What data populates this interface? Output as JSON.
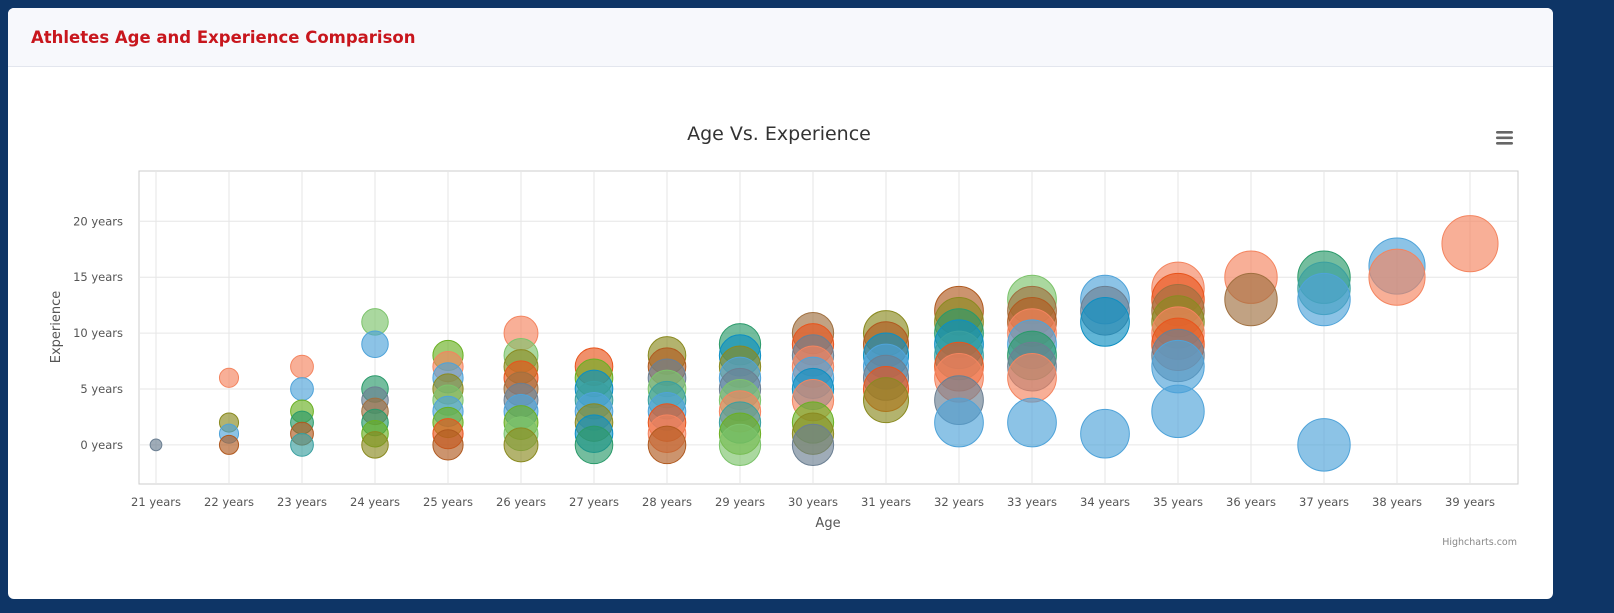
{
  "page": {
    "title": "Athletes Age and Experience Comparison"
  },
  "chart_data": {
    "type": "bubble",
    "title": "Age Vs. Experience",
    "xlabel": "Age",
    "ylabel": "Experience",
    "categories": [
      "21 years",
      "22 years",
      "23 years",
      "24 years",
      "25 years",
      "26 years",
      "27 years",
      "28 years",
      "29 years",
      "30 years",
      "31 years",
      "32 years",
      "33 years",
      "34 years",
      "35 years",
      "36 years",
      "37 years",
      "38 years",
      "39 years"
    ],
    "y_ticks": [
      "0 years",
      "5 years",
      "10 years",
      "15 years",
      "20 years"
    ],
    "y_tick_values": [
      0,
      5,
      10,
      15,
      20
    ],
    "xlim": [
      21,
      39
    ],
    "ylim": [
      -3.5,
      24.5
    ],
    "credits": "Highcharts.com",
    "menu_icon": "hamburger-menu-icon",
    "palette": [
      "#f4845f",
      "#4fa3d9",
      "#7cc36b",
      "#e8541c",
      "#2a9a6a",
      "#a07040",
      "#0d8fc2",
      "#8a8a20",
      "#6b7f92",
      "#6ab023",
      "#b05a20",
      "#3aa0a0"
    ],
    "points": [
      {
        "x": 21,
        "y": 0,
        "z": 1,
        "c": 8
      },
      {
        "x": 22,
        "y": 6,
        "z": 3,
        "c": 0
      },
      {
        "x": 22,
        "y": 2,
        "z": 3,
        "c": 7
      },
      {
        "x": 22,
        "y": 1,
        "z": 3,
        "c": 1
      },
      {
        "x": 22,
        "y": 0,
        "z": 3,
        "c": 10
      },
      {
        "x": 23,
        "y": 7,
        "z": 4,
        "c": 0
      },
      {
        "x": 23,
        "y": 5,
        "z": 4,
        "c": 1
      },
      {
        "x": 23,
        "y": 3,
        "z": 4,
        "c": 9
      },
      {
        "x": 23,
        "y": 2,
        "z": 4,
        "c": 4
      },
      {
        "x": 23,
        "y": 1,
        "z": 4,
        "c": 10
      },
      {
        "x": 23,
        "y": 0,
        "z": 4,
        "c": 11
      },
      {
        "x": 24,
        "y": 11,
        "z": 5,
        "c": 2
      },
      {
        "x": 24,
        "y": 9,
        "z": 5,
        "c": 1
      },
      {
        "x": 24,
        "y": 5,
        "z": 5,
        "c": 4
      },
      {
        "x": 24,
        "y": 4,
        "z": 5,
        "c": 8
      },
      {
        "x": 24,
        "y": 3,
        "z": 5,
        "c": 5
      },
      {
        "x": 24,
        "y": 2,
        "z": 5,
        "c": 4
      },
      {
        "x": 24,
        "y": 1,
        "z": 5,
        "c": 9
      },
      {
        "x": 24,
        "y": 0,
        "z": 5,
        "c": 7
      },
      {
        "x": 25,
        "y": 8,
        "z": 6,
        "c": 9
      },
      {
        "x": 25,
        "y": 7,
        "z": 6,
        "c": 0
      },
      {
        "x": 25,
        "y": 6,
        "z": 6,
        "c": 1
      },
      {
        "x": 25,
        "y": 5,
        "z": 6,
        "c": 7
      },
      {
        "x": 25,
        "y": 4,
        "z": 6,
        "c": 2
      },
      {
        "x": 25,
        "y": 3,
        "z": 6,
        "c": 1
      },
      {
        "x": 25,
        "y": 2,
        "z": 6,
        "c": 9
      },
      {
        "x": 25,
        "y": 1,
        "z": 6,
        "c": 3
      },
      {
        "x": 25,
        "y": 0,
        "z": 6,
        "c": 10
      },
      {
        "x": 26,
        "y": 10,
        "z": 7,
        "c": 0
      },
      {
        "x": 26,
        "y": 8,
        "z": 7,
        "c": 2
      },
      {
        "x": 26,
        "y": 7,
        "z": 7,
        "c": 7
      },
      {
        "x": 26,
        "y": 6,
        "z": 7,
        "c": 3
      },
      {
        "x": 26,
        "y": 5,
        "z": 7,
        "c": 5
      },
      {
        "x": 26,
        "y": 4,
        "z": 7,
        "c": 8
      },
      {
        "x": 26,
        "y": 3,
        "z": 7,
        "c": 1
      },
      {
        "x": 26,
        "y": 2,
        "z": 7,
        "c": 9
      },
      {
        "x": 26,
        "y": 1,
        "z": 7,
        "c": 2
      },
      {
        "x": 26,
        "y": 0,
        "z": 7,
        "c": 7
      },
      {
        "x": 27,
        "y": 7,
        "z": 8,
        "c": 3
      },
      {
        "x": 27,
        "y": 6,
        "z": 8,
        "c": 9
      },
      {
        "x": 27,
        "y": 5,
        "z": 8,
        "c": 6
      },
      {
        "x": 27,
        "y": 4,
        "z": 8,
        "c": 11
      },
      {
        "x": 27,
        "y": 3,
        "z": 8,
        "c": 1
      },
      {
        "x": 27,
        "y": 2,
        "z": 8,
        "c": 7
      },
      {
        "x": 27,
        "y": 1,
        "z": 8,
        "c": 6
      },
      {
        "x": 27,
        "y": 0,
        "z": 8,
        "c": 4
      },
      {
        "x": 28,
        "y": 8,
        "z": 8,
        "c": 7
      },
      {
        "x": 28,
        "y": 7,
        "z": 8,
        "c": 10
      },
      {
        "x": 28,
        "y": 6,
        "z": 8,
        "c": 8
      },
      {
        "x": 28,
        "y": 5,
        "z": 8,
        "c": 2
      },
      {
        "x": 28,
        "y": 4,
        "z": 8,
        "c": 11
      },
      {
        "x": 28,
        "y": 3,
        "z": 8,
        "c": 1
      },
      {
        "x": 28,
        "y": 2,
        "z": 8,
        "c": 3
      },
      {
        "x": 28,
        "y": 1,
        "z": 8,
        "c": 0
      },
      {
        "x": 28,
        "y": 0,
        "z": 8,
        "c": 10
      },
      {
        "x": 29,
        "y": 9,
        "z": 9,
        "c": 4
      },
      {
        "x": 29,
        "y": 8,
        "z": 9,
        "c": 6
      },
      {
        "x": 29,
        "y": 7,
        "z": 9,
        "c": 7
      },
      {
        "x": 29,
        "y": 6,
        "z": 9,
        "c": 1
      },
      {
        "x": 29,
        "y": 5,
        "z": 9,
        "c": 8
      },
      {
        "x": 29,
        "y": 4,
        "z": 9,
        "c": 2
      },
      {
        "x": 29,
        "y": 3,
        "z": 9,
        "c": 0
      },
      {
        "x": 29,
        "y": 2,
        "z": 9,
        "c": 11
      },
      {
        "x": 29,
        "y": 1,
        "z": 9,
        "c": 9
      },
      {
        "x": 29,
        "y": 0,
        "z": 9,
        "c": 2
      },
      {
        "x": 30,
        "y": 10,
        "z": 9,
        "c": 5
      },
      {
        "x": 30,
        "y": 9,
        "z": 9,
        "c": 3
      },
      {
        "x": 30,
        "y": 8,
        "z": 9,
        "c": 8
      },
      {
        "x": 30,
        "y": 7,
        "z": 9,
        "c": 0
      },
      {
        "x": 30,
        "y": 6,
        "z": 9,
        "c": 1
      },
      {
        "x": 30,
        "y": 5,
        "z": 9,
        "c": 6
      },
      {
        "x": 30,
        "y": 4,
        "z": 9,
        "c": 0
      },
      {
        "x": 30,
        "y": 2,
        "z": 9,
        "c": 9
      },
      {
        "x": 30,
        "y": 1,
        "z": 9,
        "c": 7
      },
      {
        "x": 30,
        "y": 0,
        "z": 9,
        "c": 8
      },
      {
        "x": 31,
        "y": 10,
        "z": 10,
        "c": 7
      },
      {
        "x": 31,
        "y": 9,
        "z": 10,
        "c": 10
      },
      {
        "x": 31,
        "y": 8,
        "z": 10,
        "c": 6
      },
      {
        "x": 31,
        "y": 7,
        "z": 10,
        "c": 1
      },
      {
        "x": 31,
        "y": 6,
        "z": 10,
        "c": 8
      },
      {
        "x": 31,
        "y": 5,
        "z": 10,
        "c": 3
      },
      {
        "x": 31,
        "y": 4,
        "z": 10,
        "c": 7
      },
      {
        "x": 32,
        "y": 12,
        "z": 11,
        "c": 10
      },
      {
        "x": 32,
        "y": 11,
        "z": 11,
        "c": 7
      },
      {
        "x": 32,
        "y": 10,
        "z": 11,
        "c": 4
      },
      {
        "x": 32,
        "y": 9,
        "z": 11,
        "c": 6
      },
      {
        "x": 32,
        "y": 8,
        "z": 11,
        "c": 11
      },
      {
        "x": 32,
        "y": 7,
        "z": 11,
        "c": 3
      },
      {
        "x": 32,
        "y": 6,
        "z": 11,
        "c": 0
      },
      {
        "x": 32,
        "y": 4,
        "z": 11,
        "c": 8
      },
      {
        "x": 32,
        "y": 2,
        "z": 11,
        "c": 1
      },
      {
        "x": 33,
        "y": 13,
        "z": 11,
        "c": 2
      },
      {
        "x": 33,
        "y": 12,
        "z": 11,
        "c": 5
      },
      {
        "x": 33,
        "y": 11,
        "z": 11,
        "c": 10
      },
      {
        "x": 33,
        "y": 10,
        "z": 11,
        "c": 0
      },
      {
        "x": 33,
        "y": 9,
        "z": 11,
        "c": 1
      },
      {
        "x": 33,
        "y": 8,
        "z": 11,
        "c": 4
      },
      {
        "x": 33,
        "y": 7,
        "z": 11,
        "c": 8
      },
      {
        "x": 33,
        "y": 6,
        "z": 11,
        "c": 0
      },
      {
        "x": 33,
        "y": 2,
        "z": 11,
        "c": 1
      },
      {
        "x": 34,
        "y": 13,
        "z": 11,
        "c": 1
      },
      {
        "x": 34,
        "y": 12,
        "z": 11,
        "c": 8
      },
      {
        "x": 34,
        "y": 11,
        "z": 11,
        "c": 6
      },
      {
        "x": 34,
        "y": 1,
        "z": 11,
        "c": 1
      },
      {
        "x": 35,
        "y": 14,
        "z": 12,
        "c": 0
      },
      {
        "x": 35,
        "y": 13,
        "z": 12,
        "c": 3
      },
      {
        "x": 35,
        "y": 12,
        "z": 12,
        "c": 5
      },
      {
        "x": 35,
        "y": 11,
        "z": 12,
        "c": 7
      },
      {
        "x": 35,
        "y": 10,
        "z": 12,
        "c": 0
      },
      {
        "x": 35,
        "y": 9,
        "z": 12,
        "c": 3
      },
      {
        "x": 35,
        "y": 8,
        "z": 12,
        "c": 8
      },
      {
        "x": 35,
        "y": 7,
        "z": 12,
        "c": 1
      },
      {
        "x": 35,
        "y": 3,
        "z": 12,
        "c": 1
      },
      {
        "x": 36,
        "y": 15,
        "z": 12,
        "c": 0
      },
      {
        "x": 36,
        "y": 13,
        "z": 12,
        "c": 5
      },
      {
        "x": 37,
        "y": 15,
        "z": 12,
        "c": 4
      },
      {
        "x": 37,
        "y": 14,
        "z": 12,
        "c": 11
      },
      {
        "x": 37,
        "y": 13,
        "z": 12,
        "c": 1
      },
      {
        "x": 37,
        "y": 0,
        "z": 12,
        "c": 1
      },
      {
        "x": 38,
        "y": 16,
        "z": 13,
        "c": 1
      },
      {
        "x": 38,
        "y": 15,
        "z": 13,
        "c": 0
      },
      {
        "x": 39,
        "y": 18,
        "z": 13,
        "c": 0
      }
    ]
  }
}
